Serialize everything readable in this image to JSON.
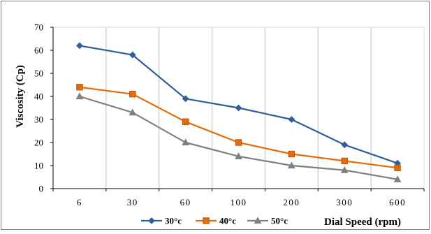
{
  "chart_data": {
    "type": "line",
    "categories": [
      "6",
      "30",
      "60",
      "100",
      "200",
      "300",
      "600"
    ],
    "series": [
      {
        "name": "30°c",
        "values": [
          62,
          58,
          39,
          35,
          30,
          19,
          11
        ],
        "color": "#2e5f9c",
        "marker": "diamond"
      },
      {
        "name": "40°c",
        "values": [
          44,
          41,
          29,
          20,
          15,
          12,
          9
        ],
        "color": "#e46c0a",
        "marker": "square"
      },
      {
        "name": "50°c",
        "values": [
          40,
          33,
          20,
          14,
          10,
          8,
          4
        ],
        "color": "#808080",
        "marker": "triangle"
      }
    ],
    "ylim": [
      0,
      70
    ],
    "yticks": [
      0,
      10,
      20,
      30,
      40,
      50,
      60,
      70
    ],
    "ylabel": "Viscosity (Cp)",
    "xlabel": "Dial Speed (rpm)",
    "grid": "vertical",
    "legend_position": "bottom"
  }
}
